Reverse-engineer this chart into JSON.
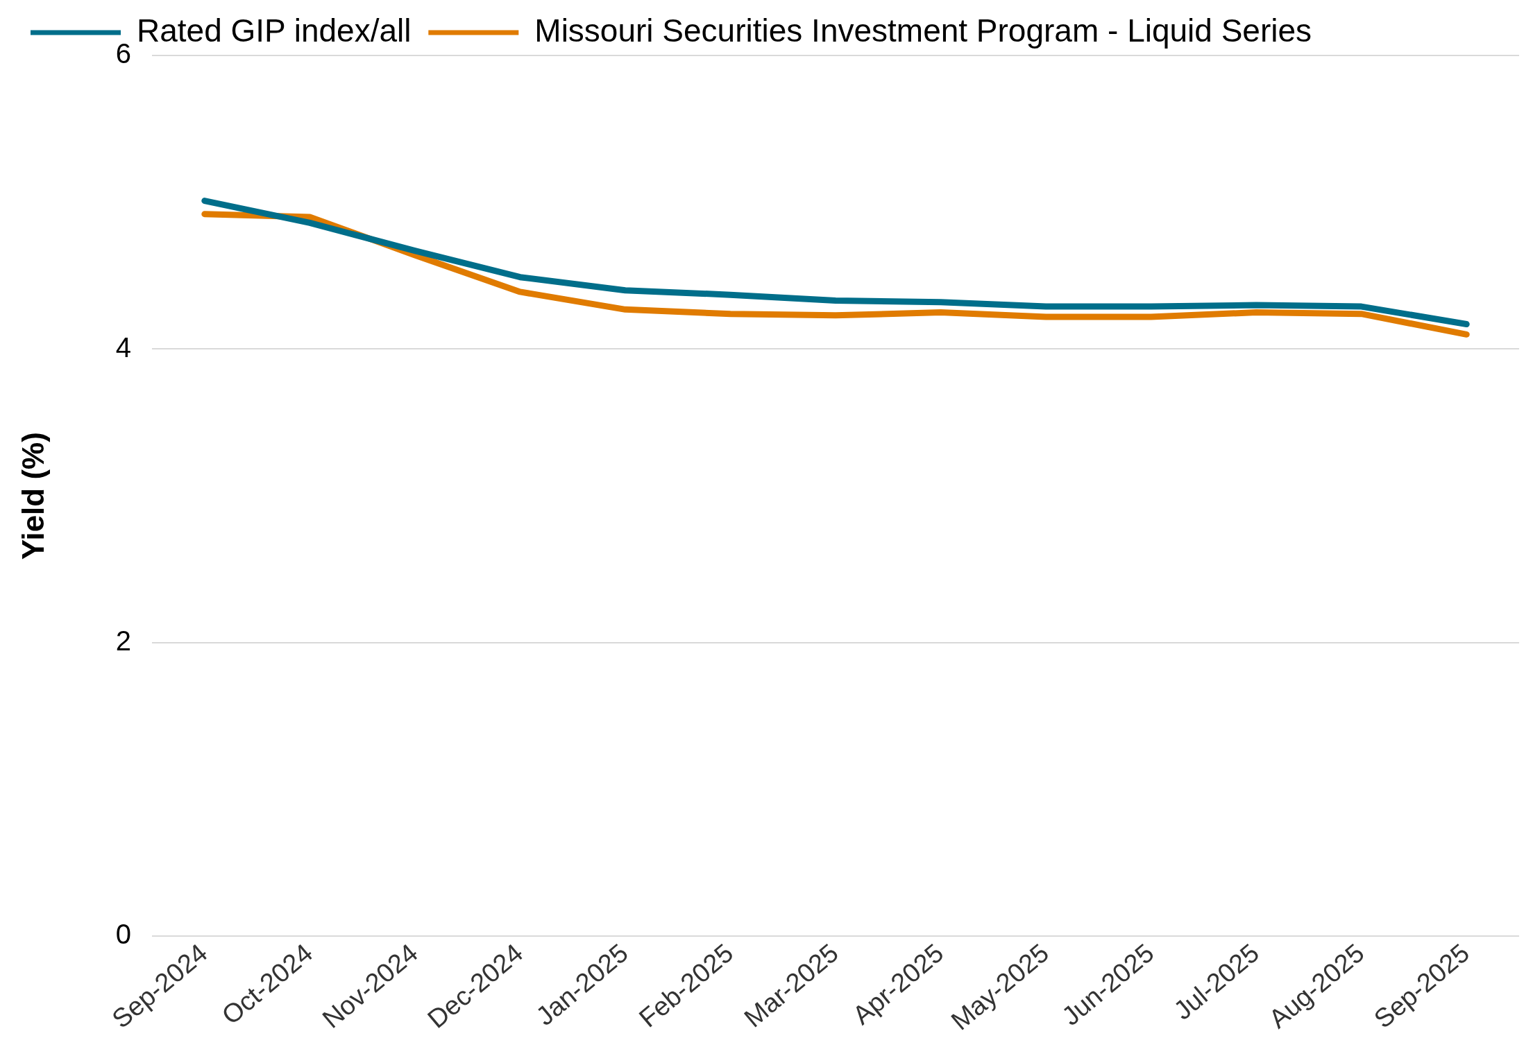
{
  "chart_data": {
    "type": "line",
    "ylabel": "Yield (%)",
    "categories": [
      "Sep-2024",
      "Oct-2024",
      "Nov-2024",
      "Dec-2024",
      "Jan-2025",
      "Feb-2025",
      "Mar-2025",
      "Apr-2025",
      "May-2025",
      "Jun-2025",
      "Jul-2025",
      "Aug-2025",
      "Sep-2025"
    ],
    "series": [
      {
        "name": "Rated GIP index/all",
        "color": "#006e8a",
        "values": [
          5.01,
          4.86,
          4.67,
          4.49,
          4.4,
          4.37,
          4.33,
          4.32,
          4.29,
          4.29,
          4.3,
          4.29,
          4.17
        ]
      },
      {
        "name": "Missouri Securities Investment Program - Liquid Series",
        "color": "#e07b00",
        "values": [
          4.92,
          4.9,
          4.64,
          4.39,
          4.27,
          4.24,
          4.23,
          4.25,
          4.22,
          4.22,
          4.25,
          4.24,
          4.1
        ]
      }
    ],
    "ylim": [
      0,
      6
    ],
    "yticks": [
      0,
      2,
      4,
      6
    ],
    "grid": "y",
    "legend": "top left",
    "marker": "none",
    "line_style": "solid"
  }
}
